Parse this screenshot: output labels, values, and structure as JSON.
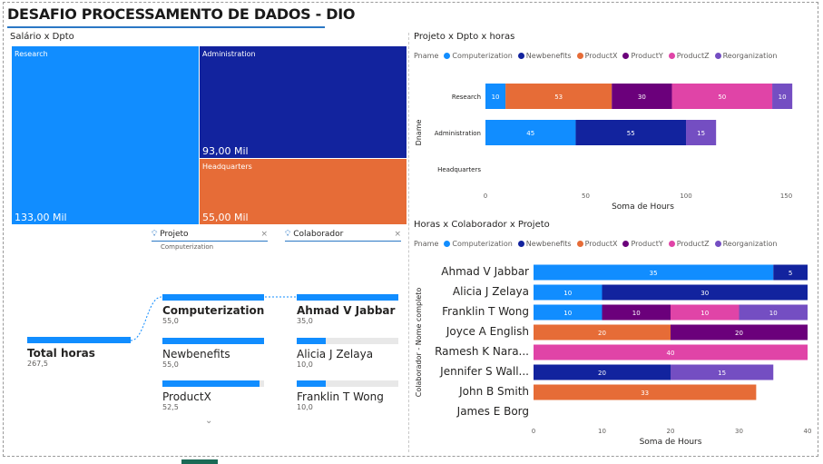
{
  "page": {
    "title": "DESAFIO PROCESSAMENTO DE DADOS - DIO"
  },
  "colors": {
    "Computerization": "#118dff",
    "Newbenefits": "#12239e",
    "ProductX": "#e66c37",
    "ProductY": "#6b007b",
    "ProductZ": "#e044a7",
    "Reorganization": "#744ec2"
  },
  "treemap": {
    "title": "Salário x Dpto",
    "cells": [
      {
        "label": "Research",
        "value_label": "133,00 Mil",
        "value": 133,
        "color": "#118dff"
      },
      {
        "label": "Administration",
        "value_label": "93,00 Mil",
        "value": 93,
        "color": "#12239e"
      },
      {
        "label": "Headquarters",
        "value_label": "55,00 Mil",
        "value": 55,
        "color": "#e66c37"
      }
    ]
  },
  "legend_title": "Pname",
  "legend_items": [
    "Computerization",
    "Newbenefits",
    "ProductX",
    "ProductY",
    "ProductZ",
    "Reorganization"
  ],
  "decomp": {
    "col1_title": "Projeto",
    "col1_sub": "Computerization",
    "col2_title": "Colaborador",
    "close_icon": "×",
    "root": {
      "name": "Total horas",
      "value": "267,5",
      "frac": 1
    },
    "level1": [
      {
        "name": "Computerization",
        "value": "55,0",
        "frac": 1,
        "selected": true
      },
      {
        "name": "Newbenefits",
        "value": "55,0",
        "frac": 1,
        "selected": false
      },
      {
        "name": "ProductX",
        "value": "52,5",
        "frac": 0.955,
        "selected": false
      }
    ],
    "level2": [
      {
        "name": "Ahmad V Jabbar",
        "value": "35,0",
        "frac": 1,
        "selected": true
      },
      {
        "name": "Alicia J Zelaya",
        "value": "10,0",
        "frac": 0.286,
        "selected": false
      },
      {
        "name": "Franklin T Wong",
        "value": "10,0",
        "frac": 0.286,
        "selected": false
      }
    ],
    "more_icon": "chevron-down"
  },
  "chart_data": [
    {
      "type": "bar",
      "orientation": "horizontal",
      "stacked": true,
      "title": "Projeto x Dpto x horas",
      "xlabel": "Soma de Hours",
      "ylabel": "Dname",
      "categories": [
        "Research",
        "Administration",
        "Headquarters"
      ],
      "series": [
        {
          "name": "Computerization",
          "values": [
            10,
            45,
            0
          ]
        },
        {
          "name": "Newbenefits",
          "values": [
            0,
            55,
            0
          ]
        },
        {
          "name": "ProductX",
          "values": [
            53,
            0,
            0
          ]
        },
        {
          "name": "ProductY",
          "values": [
            30,
            0,
            0
          ]
        },
        {
          "name": "ProductZ",
          "values": [
            50,
            0,
            0
          ]
        },
        {
          "name": "Reorganization",
          "values": [
            10,
            15,
            0
          ]
        }
      ],
      "xticks": [
        0,
        50,
        100,
        150
      ],
      "xlim": [
        0,
        157
      ],
      "grid": false,
      "legend": "top"
    },
    {
      "type": "bar",
      "orientation": "horizontal",
      "stacked": true,
      "title": "Horas x Colaborador x Projeto",
      "xlabel": "Soma de Hours",
      "ylabel": "Colaborador - Nome completo",
      "categories": [
        "Ahmad V Jabbar",
        "Alicia J Zelaya",
        "Franklin T Wong",
        "Joyce A English",
        "Ramesh K Nara...",
        "Jennifer S Wall...",
        "John B Smith",
        "James E Borg"
      ],
      "series": [
        {
          "name": "Computerization",
          "values": [
            35,
            10,
            10,
            0,
            0,
            0,
            0,
            0
          ]
        },
        {
          "name": "Newbenefits",
          "values": [
            5,
            30,
            0,
            0,
            0,
            20,
            0,
            0
          ]
        },
        {
          "name": "ProductX",
          "values": [
            0,
            0,
            0,
            20,
            0,
            0,
            32.5,
            0
          ]
        },
        {
          "name": "ProductY",
          "values": [
            0,
            0,
            10,
            20,
            0,
            0,
            0,
            0
          ]
        },
        {
          "name": "ProductZ",
          "values": [
            0,
            0,
            10,
            0,
            40,
            0,
            0,
            0
          ]
        },
        {
          "name": "Reorganization",
          "values": [
            0,
            0,
            10,
            0,
            0,
            15,
            0,
            0
          ]
        }
      ],
      "data_labels": [
        [
          "35",
          "5",
          "",
          "",
          "",
          ""
        ],
        [
          "10",
          "30",
          "",
          "",
          "",
          ""
        ],
        [
          "10",
          "",
          "",
          "10",
          "10",
          "10"
        ],
        [
          "",
          "",
          "20",
          "20",
          "",
          ""
        ],
        [
          "",
          "",
          "",
          "",
          "40",
          ""
        ],
        [
          "",
          "20",
          "",
          "",
          "",
          "15"
        ],
        [
          "",
          "",
          "33",
          "",
          "",
          ""
        ],
        [
          "",
          "",
          "",
          "",
          "",
          ""
        ]
      ],
      "xticks": [
        0,
        10,
        20,
        30,
        40
      ],
      "xlim": [
        0,
        40
      ],
      "grid": false,
      "legend": "top"
    }
  ]
}
